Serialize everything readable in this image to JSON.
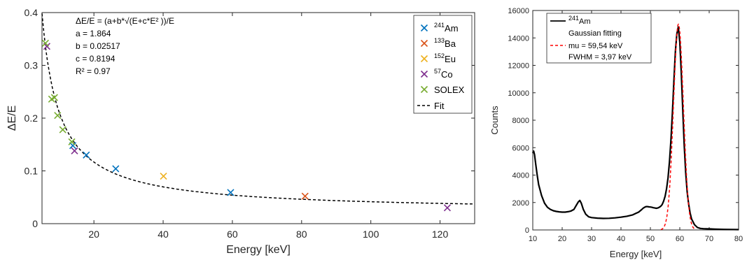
{
  "chart_data": [
    {
      "type": "scatter",
      "xlabel": "Energy [keV]",
      "ylabel": "ΔE/E",
      "xlim": [
        5,
        130
      ],
      "ylim": [
        0,
        0.4
      ],
      "xticks": [
        "20",
        "40",
        "60",
        "80",
        "100",
        "120"
      ],
      "yticks": [
        "0",
        "0.1",
        "0.2",
        "0.3",
        "0.4"
      ],
      "grid": false,
      "legend_position": "top-right",
      "annotation": {
        "formula": "ΔE/E = (a+b*√(E+c*E² ))/E",
        "a": "a = 1.864",
        "b": "b = 0.02517",
        "c": "c = 0.8194",
        "r2": "R² = 0.97"
      },
      "fit_params": {
        "a": 1.864,
        "b": 0.02517,
        "c": 0.8194
      },
      "series": [
        {
          "name_sup": "241",
          "name_main": "Am",
          "color": "#0072BD",
          "points": [
            [
              13.9,
              0.148
            ],
            [
              17.8,
              0.13
            ],
            [
              26.3,
              0.104
            ],
            [
              59.5,
              0.059
            ]
          ]
        },
        {
          "name_sup": "133",
          "name_main": "Ba",
          "color": "#D95319",
          "points": [
            [
              81.0,
              0.052
            ]
          ]
        },
        {
          "name_sup": "152",
          "name_main": "Eu",
          "color": "#EDB120",
          "points": [
            [
              40.1,
              0.09
            ]
          ]
        },
        {
          "name_sup": "57",
          "name_main": "Co",
          "color": "#7E2F8E",
          "points": [
            [
              6.4,
              0.336
            ],
            [
              14.4,
              0.138
            ],
            [
              122.1,
              0.03
            ]
          ]
        },
        {
          "name_sup": "",
          "name_main": "SOLEX",
          "color": "#77AC30",
          "points": [
            [
              6.0,
              0.342
            ],
            [
              7.8,
              0.236
            ],
            [
              8.6,
              0.239
            ],
            [
              9.5,
              0.205
            ],
            [
              11.0,
              0.178
            ],
            [
              13.6,
              0.155
            ]
          ]
        }
      ],
      "fit_label": "Fit"
    },
    {
      "type": "line",
      "xlabel": "Energy [keV]",
      "ylabel": "Counts",
      "xlim": [
        10,
        80
      ],
      "ylim": [
        0,
        16000
      ],
      "xticks": [
        "10",
        "20",
        "30",
        "40",
        "50",
        "60",
        "70",
        "80"
      ],
      "yticks": [
        "0",
        "2000",
        "4000",
        "6000",
        "8000",
        "10000",
        "12000",
        "14000",
        "16000"
      ],
      "grid": false,
      "legend_position": "top-left",
      "spectrum": {
        "name_sup": "241",
        "name_main": "Am",
        "color": "#000000",
        "x": [
          10,
          10.3,
          10.6,
          11,
          11.5,
          12,
          13,
          14,
          15,
          16,
          17,
          18,
          19,
          20,
          21,
          22,
          23,
          24,
          24.8,
          25.5,
          26,
          26.5,
          27.2,
          28,
          29,
          30,
          32,
          34,
          36,
          38,
          40,
          42,
          44,
          45,
          46,
          47,
          47.5,
          48,
          48.5,
          49,
          49.5,
          50,
          50.5,
          51,
          51.5,
          52,
          52.5,
          53,
          53.5,
          54,
          54.5,
          55,
          55.5,
          56,
          56.5,
          57,
          57.5,
          58,
          58.5,
          59,
          59.5,
          60,
          60.5,
          61,
          61.5,
          62,
          62.5,
          63,
          63.5,
          64,
          65,
          66,
          67,
          68,
          70,
          72,
          75,
          80
        ],
        "y": [
          5600,
          5750,
          5500,
          4800,
          4000,
          3300,
          2500,
          1950,
          1650,
          1500,
          1400,
          1350,
          1320,
          1300,
          1300,
          1330,
          1380,
          1500,
          1800,
          2050,
          2150,
          1950,
          1500,
          1150,
          960,
          900,
          860,
          840,
          850,
          880,
          930,
          1000,
          1100,
          1200,
          1300,
          1480,
          1580,
          1650,
          1700,
          1700,
          1680,
          1670,
          1650,
          1620,
          1600,
          1580,
          1600,
          1650,
          1720,
          1850,
          2100,
          2450,
          3000,
          3800,
          5000,
          6600,
          8600,
          10900,
          13000,
          14300,
          14800,
          13700,
          11500,
          8800,
          6200,
          4200,
          2800,
          1900,
          1250,
          800,
          380,
          180,
          110,
          90,
          75,
          60,
          40,
          25
        ]
      },
      "gaussian": {
        "label": "Gaussian fitting",
        "mu_label": "mu = 59,54 keV",
        "fwhm_label": "FWHM = 3,97 keV",
        "mu": 59.54,
        "fwhm": 3.97,
        "amplitude": 15000,
        "color": "#FF0000"
      }
    }
  ]
}
